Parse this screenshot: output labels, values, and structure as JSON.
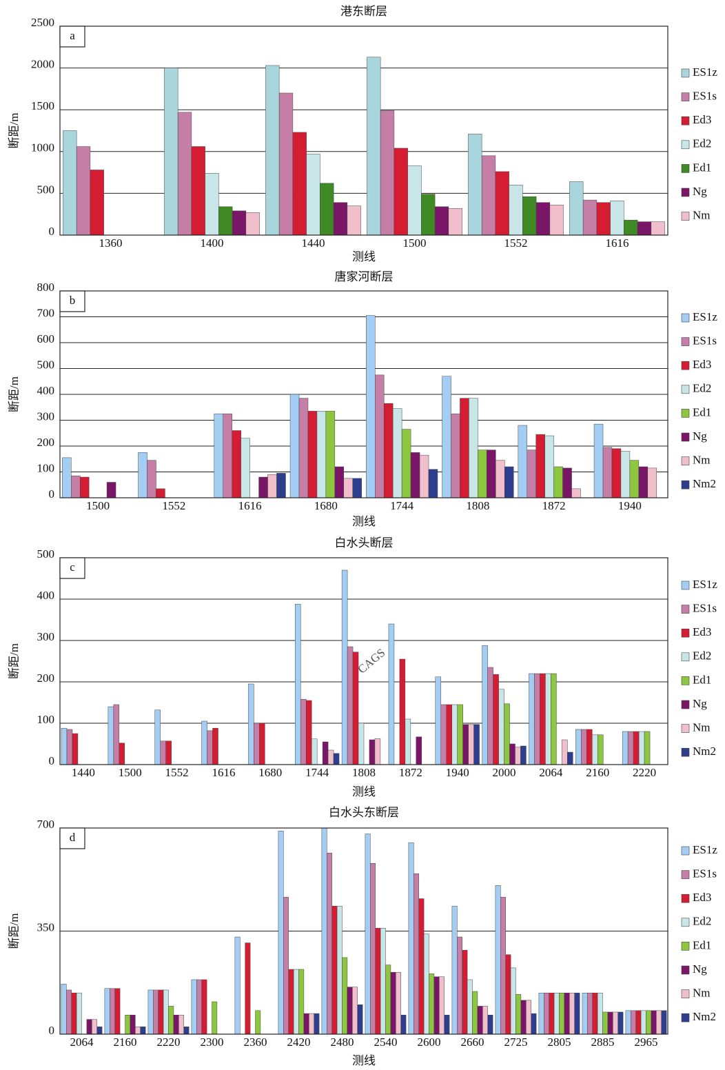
{
  "watermark": "CAGS",
  "chart_data": [
    {
      "type": "bar",
      "title": "港东断层",
      "panel_label": "a",
      "x_label": "测线",
      "y_label": "断距/m",
      "categories": [
        "1360",
        "1400",
        "1440",
        "1500",
        "1552",
        "1616"
      ],
      "ylim": [
        0,
        2500
      ],
      "yticks": [
        0,
        500,
        1000,
        1500,
        2000,
        2500
      ],
      "grid": true,
      "series": [
        {
          "name": "ES1z",
          "color": "#a9d6dc",
          "values": [
            1250,
            2000,
            2030,
            2130,
            1210,
            640
          ]
        },
        {
          "name": "ES1s",
          "color": "#c57ea6",
          "values": [
            1060,
            1470,
            1700,
            1490,
            950,
            420
          ]
        },
        {
          "name": "Ed3",
          "color": "#d41c33",
          "values": [
            780,
            1060,
            1230,
            1040,
            760,
            390
          ]
        },
        {
          "name": "Ed2",
          "color": "#c8e6e8",
          "values": [
            null,
            740,
            970,
            830,
            600,
            410
          ]
        },
        {
          "name": "Ed1",
          "color": "#3f8a25",
          "values": [
            null,
            340,
            620,
            490,
            460,
            180
          ]
        },
        {
          "name": "Ng",
          "color": "#7a1668",
          "values": [
            null,
            290,
            390,
            340,
            390,
            160
          ]
        },
        {
          "name": "Nm",
          "color": "#f0bfcb",
          "values": [
            null,
            270,
            350,
            320,
            360,
            160
          ]
        }
      ]
    },
    {
      "type": "bar",
      "title": "唐家河断层",
      "panel_label": "b",
      "x_label": "测线",
      "y_label": "断距/m",
      "categories": [
        "1500",
        "1552",
        "1616",
        "1680",
        "1744",
        "1808",
        "1872",
        "1940"
      ],
      "ylim": [
        0,
        800
      ],
      "yticks": [
        0,
        100,
        200,
        300,
        400,
        500,
        600,
        700,
        800
      ],
      "grid": true,
      "series": [
        {
          "name": "ES1z",
          "color": "#a3cdf2",
          "values": [
            155,
            175,
            325,
            400,
            705,
            470,
            280,
            285
          ]
        },
        {
          "name": "ES1s",
          "color": "#c57ea6",
          "values": [
            85,
            145,
            325,
            385,
            475,
            325,
            185,
            195
          ]
        },
        {
          "name": "Ed3",
          "color": "#d41c33",
          "values": [
            80,
            35,
            260,
            335,
            365,
            385,
            245,
            190
          ]
        },
        {
          "name": "Ed2",
          "color": "#c8e6e8",
          "values": [
            null,
            null,
            230,
            335,
            345,
            385,
            240,
            180
          ]
        },
        {
          "name": "Ed1",
          "color": "#8dc63f",
          "values": [
            null,
            null,
            null,
            335,
            265,
            185,
            120,
            145
          ]
        },
        {
          "name": "Ng",
          "color": "#7a1668",
          "values": [
            60,
            null,
            80,
            120,
            175,
            185,
            115,
            120
          ]
        },
        {
          "name": "Nm",
          "color": "#f0bfcb",
          "values": [
            null,
            null,
            90,
            75,
            165,
            145,
            35,
            115
          ]
        },
        {
          "name": "Nm2",
          "color": "#2d3e8f",
          "values": [
            null,
            null,
            95,
            75,
            110,
            120,
            null,
            null
          ]
        }
      ]
    },
    {
      "type": "bar",
      "title": "白水头断层",
      "panel_label": "c",
      "x_label": "测线",
      "y_label": "断距/m",
      "categories": [
        "1440",
        "1500",
        "1552",
        "1616",
        "1680",
        "1744",
        "1808",
        "1872",
        "1940",
        "2000",
        "2064",
        "2160",
        "2220"
      ],
      "ylim": [
        0,
        500
      ],
      "yticks": [
        0,
        100,
        200,
        300,
        400,
        500
      ],
      "grid": true,
      "series": [
        {
          "name": "ES1z",
          "color": "#a3cdf2",
          "values": [
            88,
            140,
            132,
            105,
            195,
            388,
            470,
            340,
            212,
            288,
            220,
            85,
            80
          ]
        },
        {
          "name": "ES1s",
          "color": "#c57ea6",
          "values": [
            85,
            145,
            57,
            82,
            100,
            158,
            285,
            null,
            145,
            235,
            220,
            85,
            80
          ]
        },
        {
          "name": "Ed3",
          "color": "#d41c33",
          "values": [
            75,
            52,
            57,
            88,
            100,
            155,
            272,
            255,
            145,
            218,
            220,
            85,
            80
          ]
        },
        {
          "name": "Ed2",
          "color": "#c8e6e8",
          "values": [
            null,
            null,
            null,
            null,
            null,
            62,
            100,
            110,
            145,
            182,
            220,
            72,
            80
          ]
        },
        {
          "name": "Ed1",
          "color": "#8dc63f",
          "values": [
            null,
            null,
            null,
            null,
            null,
            null,
            null,
            null,
            145,
            147,
            220,
            72,
            80
          ]
        },
        {
          "name": "Ng",
          "color": "#7a1668",
          "values": [
            null,
            null,
            null,
            null,
            null,
            55,
            60,
            67,
            97,
            50,
            null,
            null,
            null
          ]
        },
        {
          "name": "Nm",
          "color": "#f0bfcb",
          "values": [
            null,
            null,
            null,
            null,
            null,
            35,
            63,
            null,
            97,
            42,
            60,
            null,
            null
          ]
        },
        {
          "name": "Nm2",
          "color": "#2d3e8f",
          "values": [
            null,
            null,
            null,
            null,
            null,
            27,
            null,
            null,
            97,
            45,
            30,
            null,
            null
          ]
        }
      ]
    },
    {
      "type": "bar",
      "title": "白水头东断层",
      "panel_label": "d",
      "x_label": "测线",
      "y_label": "断距/m",
      "categories": [
        "2064",
        "2160",
        "2220",
        "2300",
        "2360",
        "2420",
        "2480",
        "2540",
        "2600",
        "2660",
        "2725",
        "2805",
        "2885",
        "2965"
      ],
      "ylim": [
        0,
        700
      ],
      "yticks": [
        0,
        350,
        700
      ],
      "grid": true,
      "series": [
        {
          "name": "ES1z",
          "color": "#a3cdf2",
          "values": [
            170,
            155,
            150,
            185,
            330,
            690,
            700,
            680,
            650,
            435,
            505,
            140,
            140,
            80
          ]
        },
        {
          "name": "ES1s",
          "color": "#c57ea6",
          "values": [
            150,
            155,
            150,
            185,
            null,
            465,
            615,
            580,
            545,
            330,
            465,
            140,
            140,
            80
          ]
        },
        {
          "name": "Ed3",
          "color": "#d41c33",
          "values": [
            140,
            155,
            150,
            185,
            310,
            220,
            435,
            360,
            460,
            285,
            270,
            140,
            140,
            80
          ]
        },
        {
          "name": "Ed2",
          "color": "#c8e6e8",
          "values": [
            140,
            null,
            150,
            null,
            null,
            220,
            435,
            360,
            340,
            185,
            225,
            140,
            140,
            80
          ]
        },
        {
          "name": "Ed1",
          "color": "#8dc63f",
          "values": [
            null,
            65,
            95,
            110,
            80,
            220,
            260,
            235,
            205,
            145,
            135,
            140,
            75,
            80
          ]
        },
        {
          "name": "Ng",
          "color": "#7a1668",
          "values": [
            50,
            65,
            65,
            null,
            null,
            70,
            160,
            210,
            195,
            95,
            115,
            140,
            75,
            80
          ]
        },
        {
          "name": "Nm",
          "color": "#f0bfcb",
          "values": [
            50,
            25,
            65,
            null,
            null,
            70,
            160,
            210,
            195,
            95,
            115,
            140,
            75,
            80
          ]
        },
        {
          "name": "Nm2",
          "color": "#2d3e8f",
          "values": [
            25,
            25,
            25,
            null,
            null,
            70,
            100,
            65,
            65,
            65,
            70,
            140,
            75,
            80
          ]
        }
      ]
    }
  ]
}
